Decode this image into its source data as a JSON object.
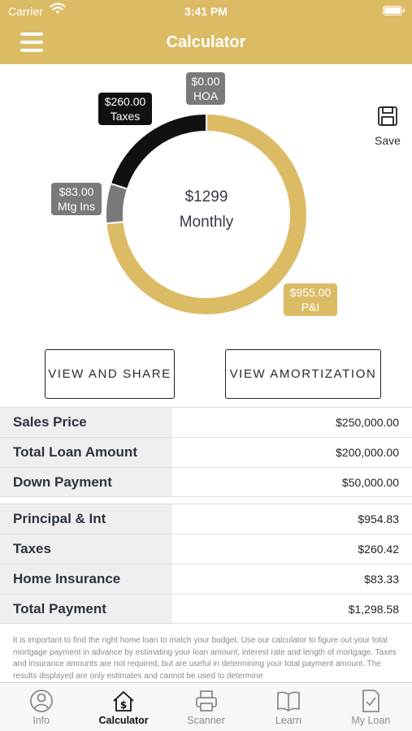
{
  "status_bar": {
    "carrier": "Carrier",
    "time": "3:41 PM"
  },
  "nav": {
    "title": "Calculator"
  },
  "chart": {
    "center_amount": "$1299",
    "center_label": "Monthly",
    "colors": {
      "pi": "#dcbb65",
      "taxes": "#111111",
      "mtg_ins": "#7a7a7a",
      "hoa": "#7a7a7a"
    },
    "bubbles": {
      "hoa": {
        "amount": "$0.00",
        "label": "HOA"
      },
      "taxes": {
        "amount": "$260.00",
        "label": "Taxes"
      },
      "mtg_ins": {
        "amount": "$83.00",
        "label": "Mtg Ins"
      },
      "pi": {
        "amount": "$955.00",
        "label": "P&I"
      }
    }
  },
  "chart_data": {
    "type": "pie",
    "categories": [
      "P&I",
      "Mtg Ins",
      "Taxes",
      "HOA"
    ],
    "values": [
      955.0,
      83.0,
      260.0,
      0.0
    ]
  },
  "save": {
    "label": "Save"
  },
  "buttons": {
    "share": "VIEW AND SHARE",
    "amortization": "VIEW AMORTIZATION"
  },
  "loan_rows": [
    {
      "label": "Sales Price",
      "value": "$250,000.00"
    },
    {
      "label": "Total Loan Amount",
      "value": "$200,000.00"
    },
    {
      "label": "Down Payment",
      "value": "$50,000.00"
    }
  ],
  "payment_rows": [
    {
      "label": "Principal & Int",
      "value": "$954.83"
    },
    {
      "label": "Taxes",
      "value": "$260.42"
    },
    {
      "label": "Home Insurance",
      "value": "$83.33"
    },
    {
      "label": "Total Payment",
      "value": "$1,298.58"
    }
  ],
  "disclaimer": "It is important to find the right home loan to match your budget. Use our calculator to figure out your total mortgage payment in advance by estimating your loan amount, interest rate and length of mortgage. Taxes and insurance amounts are not required, but are useful in determining your total payment amount. The results displayed are only estimates and cannot be used to determine",
  "tabs": [
    {
      "label": "Info",
      "icon": "person-circle-icon"
    },
    {
      "label": "Calculator",
      "icon": "house-dollar-icon"
    },
    {
      "label": "Scanner",
      "icon": "printer-icon"
    },
    {
      "label": "Learn",
      "icon": "open-book-icon"
    },
    {
      "label": "My Loan",
      "icon": "document-check-icon"
    }
  ]
}
